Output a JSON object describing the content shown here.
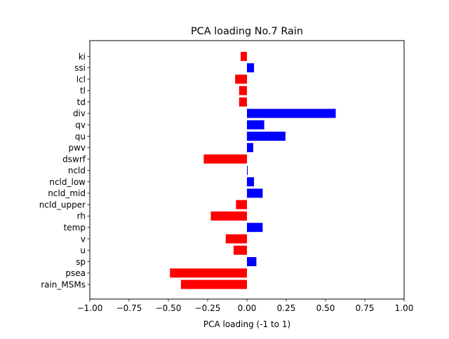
{
  "chart_data": {
    "type": "bar",
    "orientation": "horizontal",
    "title": "PCA loading No.7 Rain",
    "xlabel": "PCA loading (-1 to 1)",
    "ylabel": "",
    "xlim": [
      -1.0,
      1.0
    ],
    "xticks": [
      -1.0,
      -0.75,
      -0.5,
      -0.25,
      0.0,
      0.25,
      0.5,
      0.75,
      1.0
    ],
    "xtick_labels": [
      "−1.00",
      "−0.75",
      "−0.50",
      "−0.25",
      "0.00",
      "0.25",
      "0.50",
      "0.75",
      "1.00"
    ],
    "grid": false,
    "colors": {
      "positive": "#0000ff",
      "negative": "#ff0000"
    },
    "categories": [
      "ki",
      "ssi",
      "lcl",
      "tl",
      "td",
      "div",
      "qv",
      "qu",
      "pwv",
      "dswrf",
      "ncld",
      "ncld_low",
      "ncld_mid",
      "ncld_upper",
      "rh",
      "temp",
      "v",
      "u",
      "sp",
      "psea",
      "rain_MSMs"
    ],
    "values": [
      -0.04,
      0.045,
      -0.075,
      -0.05,
      -0.05,
      0.565,
      0.11,
      0.245,
      0.04,
      -0.275,
      0.005,
      0.045,
      0.1,
      -0.07,
      -0.23,
      0.1,
      -0.135,
      -0.085,
      0.06,
      -0.49,
      -0.42
    ]
  }
}
